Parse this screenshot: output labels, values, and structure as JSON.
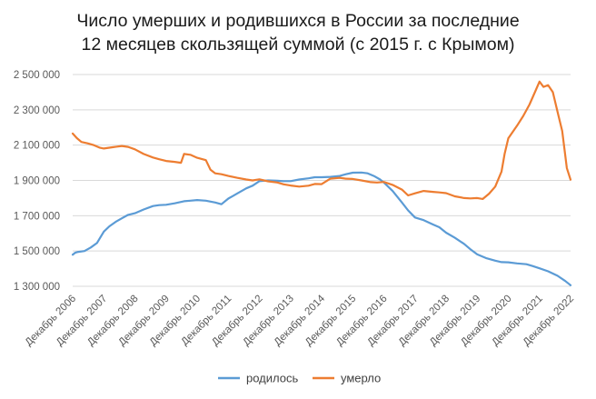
{
  "chart_data": {
    "type": "line",
    "title": "Число умерших и родившихся в России за последние",
    "subtitle": "12 месяцев скользящей суммой (с 2015 г. с Крымом)",
    "xlabel": "",
    "ylabel": "",
    "ylim": [
      1300000,
      2500000
    ],
    "yticks": [
      "1 300 000",
      "1 500 000",
      "1 700 000",
      "1 900 000",
      "2 100 000",
      "2 300 000",
      "2 500 000"
    ],
    "yticks_values": [
      1300000,
      1500000,
      1700000,
      1900000,
      2100000,
      2300000,
      2500000
    ],
    "categories": [
      "Декабрь 2006",
      "Декабрь 2007",
      "Декабрь 2008",
      "Декабрь 2009",
      "Декабрь 2010",
      "Декабрь 2011",
      "Декабрь 2012",
      "Декабрь 2013",
      "Декабрь 2014",
      "Декабрь 2015",
      "Декабрь 2016",
      "Декабрь 2017",
      "Декабрь 2018",
      "Декабрь 2019",
      "Декабрь 2020",
      "Декабрь 2021",
      "Декабрь 2022"
    ],
    "grid": true,
    "legend_position": "bottom",
    "series": [
      {
        "name": "родилось",
        "color": "#5b9bd5",
        "points": [
          [
            2006.92,
            1479000
          ],
          [
            2007.0,
            1490000
          ],
          [
            2007.1,
            1495000
          ],
          [
            2007.3,
            1500000
          ],
          [
            2007.5,
            1520000
          ],
          [
            2007.7,
            1545000
          ],
          [
            2007.92,
            1610000
          ],
          [
            2008.1,
            1640000
          ],
          [
            2008.3,
            1665000
          ],
          [
            2008.5,
            1685000
          ],
          [
            2008.7,
            1705000
          ],
          [
            2008.92,
            1714000
          ],
          [
            2009.2,
            1735000
          ],
          [
            2009.5,
            1755000
          ],
          [
            2009.7,
            1760000
          ],
          [
            2009.92,
            1762000
          ],
          [
            2010.2,
            1770000
          ],
          [
            2010.5,
            1782000
          ],
          [
            2010.7,
            1785000
          ],
          [
            2010.92,
            1789000
          ],
          [
            2011.2,
            1785000
          ],
          [
            2011.5,
            1775000
          ],
          [
            2011.7,
            1765000
          ],
          [
            2011.92,
            1797000
          ],
          [
            2012.2,
            1825000
          ],
          [
            2012.5,
            1855000
          ],
          [
            2012.7,
            1870000
          ],
          [
            2012.92,
            1896000
          ],
          [
            2013.2,
            1900000
          ],
          [
            2013.5,
            1898000
          ],
          [
            2013.7,
            1896000
          ],
          [
            2013.92,
            1896000
          ],
          [
            2014.2,
            1905000
          ],
          [
            2014.5,
            1912000
          ],
          [
            2014.7,
            1918000
          ],
          [
            2014.92,
            1918000
          ],
          [
            2015.2,
            1920000
          ],
          [
            2015.5,
            1925000
          ],
          [
            2015.7,
            1935000
          ],
          [
            2015.92,
            1944000
          ],
          [
            2016.2,
            1945000
          ],
          [
            2016.4,
            1940000
          ],
          [
            2016.6,
            1925000
          ],
          [
            2016.8,
            1905000
          ],
          [
            2016.92,
            1888000
          ],
          [
            2017.2,
            1840000
          ],
          [
            2017.5,
            1775000
          ],
          [
            2017.7,
            1730000
          ],
          [
            2017.92,
            1690000
          ],
          [
            2018.2,
            1675000
          ],
          [
            2018.5,
            1650000
          ],
          [
            2018.7,
            1635000
          ],
          [
            2018.92,
            1604000
          ],
          [
            2019.2,
            1575000
          ],
          [
            2019.5,
            1540000
          ],
          [
            2019.7,
            1510000
          ],
          [
            2019.92,
            1481000
          ],
          [
            2020.2,
            1460000
          ],
          [
            2020.5,
            1445000
          ],
          [
            2020.7,
            1437000
          ],
          [
            2020.92,
            1436000
          ],
          [
            2021.2,
            1430000
          ],
          [
            2021.5,
            1425000
          ],
          [
            2021.7,
            1415000
          ],
          [
            2021.92,
            1402000
          ],
          [
            2022.2,
            1385000
          ],
          [
            2022.5,
            1360000
          ],
          [
            2022.75,
            1330000
          ],
          [
            2022.92,
            1306000
          ]
        ]
      },
      {
        "name": "умерло",
        "color": "#ed7d31",
        "points": [
          [
            2006.92,
            2166000
          ],
          [
            2007.05,
            2140000
          ],
          [
            2007.2,
            2118000
          ],
          [
            2007.4,
            2110000
          ],
          [
            2007.6,
            2100000
          ],
          [
            2007.8,
            2085000
          ],
          [
            2007.92,
            2081000
          ],
          [
            2008.2,
            2088000
          ],
          [
            2008.5,
            2095000
          ],
          [
            2008.7,
            2090000
          ],
          [
            2008.92,
            2076000
          ],
          [
            2009.2,
            2050000
          ],
          [
            2009.5,
            2030000
          ],
          [
            2009.7,
            2020000
          ],
          [
            2009.92,
            2010000
          ],
          [
            2010.2,
            2005000
          ],
          [
            2010.4,
            2000000
          ],
          [
            2010.5,
            2050000
          ],
          [
            2010.7,
            2045000
          ],
          [
            2010.92,
            2028000
          ],
          [
            2011.2,
            2015000
          ],
          [
            2011.35,
            1960000
          ],
          [
            2011.5,
            1940000
          ],
          [
            2011.7,
            1935000
          ],
          [
            2011.92,
            1925000
          ],
          [
            2012.2,
            1915000
          ],
          [
            2012.5,
            1905000
          ],
          [
            2012.7,
            1900000
          ],
          [
            2012.92,
            1906000
          ],
          [
            2013.2,
            1895000
          ],
          [
            2013.5,
            1888000
          ],
          [
            2013.7,
            1878000
          ],
          [
            2013.92,
            1871000
          ],
          [
            2014.2,
            1865000
          ],
          [
            2014.5,
            1870000
          ],
          [
            2014.7,
            1880000
          ],
          [
            2014.92,
            1879000
          ],
          [
            2015.2,
            1910000
          ],
          [
            2015.5,
            1915000
          ],
          [
            2015.7,
            1910000
          ],
          [
            2015.92,
            1908000
          ],
          [
            2016.2,
            1900000
          ],
          [
            2016.5,
            1890000
          ],
          [
            2016.7,
            1888000
          ],
          [
            2016.92,
            1891000
          ],
          [
            2017.2,
            1875000
          ],
          [
            2017.5,
            1848000
          ],
          [
            2017.7,
            1815000
          ],
          [
            2017.92,
            1827000
          ],
          [
            2018.2,
            1840000
          ],
          [
            2018.5,
            1835000
          ],
          [
            2018.7,
            1832000
          ],
          [
            2018.92,
            1828000
          ],
          [
            2019.2,
            1810000
          ],
          [
            2019.5,
            1800000
          ],
          [
            2019.7,
            1798000
          ],
          [
            2019.92,
            1800000
          ],
          [
            2020.1,
            1795000
          ],
          [
            2020.3,
            1825000
          ],
          [
            2020.5,
            1865000
          ],
          [
            2020.7,
            1950000
          ],
          [
            2020.8,
            2050000
          ],
          [
            2020.92,
            2139000
          ],
          [
            2021.2,
            2210000
          ],
          [
            2021.4,
            2265000
          ],
          [
            2021.6,
            2330000
          ],
          [
            2021.8,
            2410000
          ],
          [
            2021.92,
            2460000
          ],
          [
            2022.05,
            2430000
          ],
          [
            2022.2,
            2440000
          ],
          [
            2022.35,
            2400000
          ],
          [
            2022.5,
            2290000
          ],
          [
            2022.65,
            2180000
          ],
          [
            2022.8,
            1970000
          ],
          [
            2022.92,
            1904000
          ]
        ]
      }
    ]
  }
}
